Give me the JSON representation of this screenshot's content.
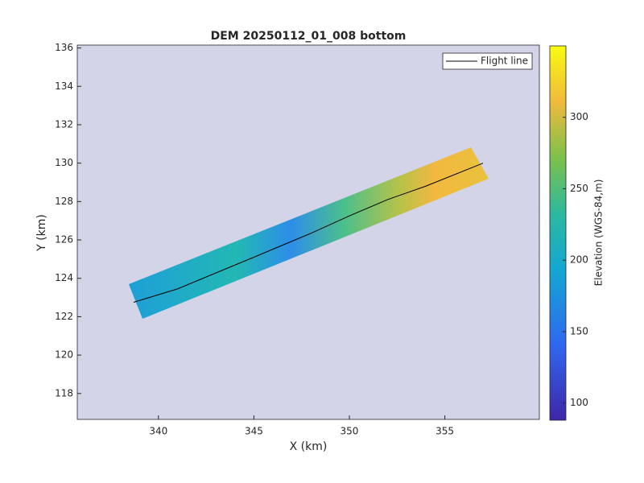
{
  "chart_data": {
    "type": "line",
    "title": "DEM 20250112_01_008 bottom",
    "x_label": "X (km)",
    "y_label": "Y (km)",
    "xlim": [
      335.75,
      359.95
    ],
    "ylim": [
      116.65,
      136.15
    ],
    "xticks": [
      340,
      345,
      350,
      355
    ],
    "yticks": [
      118,
      120,
      122,
      124,
      126,
      128,
      130,
      132,
      134,
      136
    ],
    "series": [
      {
        "name": "Flight line",
        "color": "#000000",
        "x": [
          338.7,
          341,
          345,
          348,
          350,
          352,
          354,
          357
        ],
        "values": [
          122.75,
          123.45,
          125.1,
          126.35,
          127.25,
          128.1,
          128.8,
          130.0
        ]
      }
    ],
    "legend": "northeast",
    "colorbar": {
      "label": "Elevation (WGS-84,m)",
      "clim": [
        88,
        350
      ],
      "ticks": [
        100,
        150,
        200,
        250,
        300
      ]
    }
  }
}
